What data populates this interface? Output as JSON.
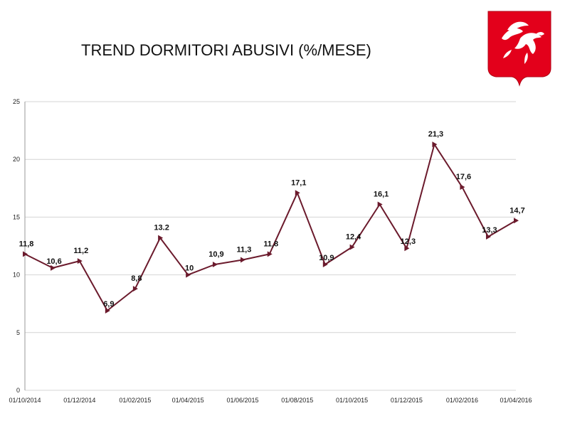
{
  "title": "TREND DORMITORI ABUSIVI (%/MESE)",
  "logo": {
    "icon": "regione-toscana-pegasus-crest",
    "colors": {
      "shield": "#e3001b",
      "emblem": "#ffffff"
    }
  },
  "chart_data": {
    "type": "line",
    "title": "TREND DORMITORI ABUSIVI (%/MESE)",
    "xlabel": "",
    "ylabel": "",
    "ylim": [
      0,
      25
    ],
    "yticks": [
      0,
      5,
      10,
      15,
      20,
      25
    ],
    "xlim": [
      "01/10/2014",
      "01/04/2016"
    ],
    "xticks": [
      "01/10/2014",
      "01/12/2014",
      "01/02/2015",
      "01/04/2015",
      "01/06/2015",
      "01/08/2015",
      "01/10/2015",
      "01/12/2015",
      "01/02/2016",
      "01/04/2016"
    ],
    "grid": "horizontal",
    "legend": "none",
    "line_color": "#6b1a2c",
    "series": [
      {
        "x": [
          "01/10/2014",
          "01/11/2014",
          "01/12/2014",
          "01/01/2015",
          "01/02/2015",
          "01/03/2015",
          "01/04/2015",
          "01/05/2015",
          "01/06/2015",
          "01/07/2015",
          "01/08/2015",
          "01/09/2015",
          "01/10/2015",
          "01/11/2015",
          "01/12/2015",
          "01/01/2016",
          "01/02/2016",
          "01/03/2016",
          "01/04/2016"
        ],
        "values": [
          11.8,
          10.6,
          11.2,
          6.9,
          8.8,
          13.2,
          10,
          10.9,
          11.3,
          11.8,
          17.1,
          10.9,
          12.4,
          16.1,
          12.3,
          21.3,
          17.6,
          13.3,
          14.7
        ],
        "labels": [
          "11,8",
          "10,6",
          "11,2",
          "6,9",
          "8,8",
          "13.2",
          "10",
          "10,9",
          "11,3",
          "11,8",
          "17,1",
          "10,9",
          "12,4",
          "16,1",
          "12,3",
          "21,3",
          "17,6",
          "13,3",
          "14,7"
        ]
      }
    ]
  }
}
